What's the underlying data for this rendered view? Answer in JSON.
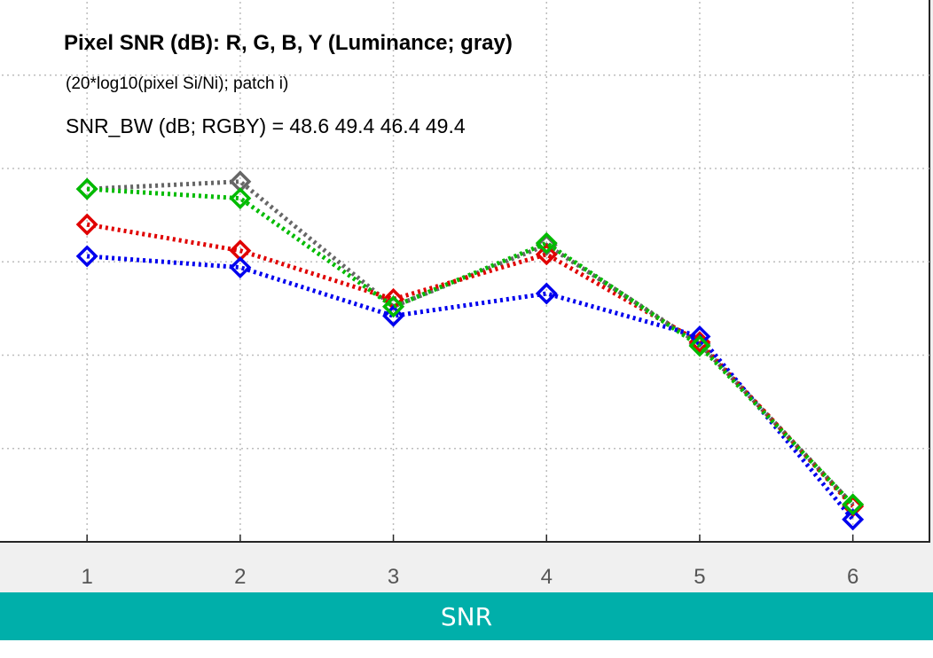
{
  "chart_data": {
    "type": "line",
    "title": "Pixel SNR (dB): R, G, B, Y (Luminance; gray)",
    "subtitle": "(20*log10(pixel Si/Ni); patch i)",
    "summary": "SNR_BW (dB; RGBY) = 48.6 49.4 46.4 49.4",
    "x": [
      1,
      2,
      3,
      4,
      5,
      6
    ],
    "xlim": [
      0.2,
      6.5
    ],
    "ylim": [
      30,
      59.5
    ],
    "xticks": [
      "1",
      "2",
      "3",
      "4",
      "5",
      "6"
    ],
    "yticks": [
      "30",
      "35",
      "40",
      "45",
      "50",
      "55"
    ],
    "ytick_values": [
      30,
      35,
      40,
      45,
      50,
      55
    ],
    "grid": true,
    "series": [
      {
        "color": "#666666",
        "values": [
          48.9,
          49.3,
          42.6,
          45.9,
          40.6,
          32.0
        ]
      },
      {
        "color": "#e00000",
        "values": [
          47.0,
          45.6,
          43.0,
          45.4,
          40.7,
          31.9
        ]
      },
      {
        "color": "#0000ee",
        "values": [
          45.3,
          44.7,
          42.1,
          43.3,
          41.0,
          31.2
        ]
      },
      {
        "color": "#00bb00",
        "values": [
          48.9,
          48.4,
          42.6,
          46.0,
          40.5,
          32.0
        ]
      }
    ]
  },
  "banner": {
    "label": "SNR"
  }
}
